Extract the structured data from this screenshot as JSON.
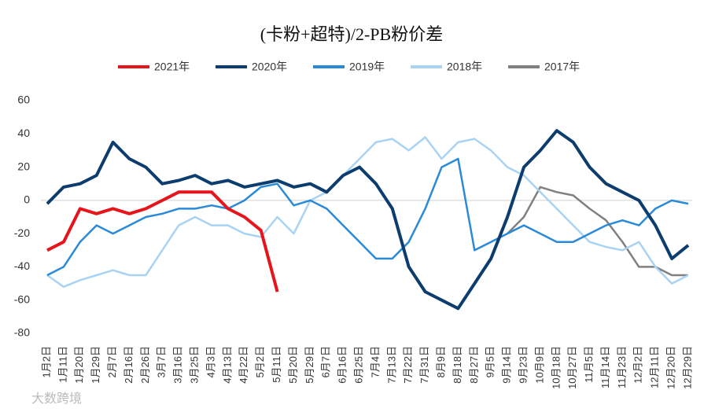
{
  "chart_data": {
    "type": "line",
    "title": "(卡粉+超特)/2-PB粉价差",
    "watermark": "大数跨境",
    "categories": [
      "1月2日",
      "1月11日",
      "1月20日",
      "1月29日",
      "2月7日",
      "2月16日",
      "2月26日",
      "3月7日",
      "3月16日",
      "3月25日",
      "4月3日",
      "4月13日",
      "4月22日",
      "5月2日",
      "5月11日",
      "5月20日",
      "5月29日",
      "6月7日",
      "6月16日",
      "6月25日",
      "7月4日",
      "7月13日",
      "7月22日",
      "7月31日",
      "8月9日",
      "8月18日",
      "8月27日",
      "9月5日",
      "9月14日",
      "9月23日",
      "10月9日",
      "10月18日",
      "10月27日",
      "11月5日",
      "11月14日",
      "11月23日",
      "12月2日",
      "12月11日",
      "12月20日",
      "12月29日"
    ],
    "series": [
      {
        "name": "2021年",
        "color": "#e8141b",
        "values": [
          -30,
          -25,
          -5,
          -8,
          -5,
          -8,
          -5,
          0,
          5,
          5,
          5,
          -5,
          -10,
          -18,
          -55,
          null,
          null,
          null,
          null,
          null,
          null,
          null,
          null,
          null,
          null,
          null,
          null,
          null,
          null,
          null,
          null,
          null,
          null,
          null,
          null,
          null,
          null,
          null,
          null,
          null
        ]
      },
      {
        "name": "2020年",
        "color": "#0d3d6e",
        "values": [
          -2,
          8,
          10,
          15,
          35,
          25,
          20,
          10,
          12,
          15,
          10,
          12,
          8,
          10,
          12,
          8,
          10,
          5,
          15,
          20,
          10,
          -5,
          -40,
          -55,
          -60,
          -65,
          -50,
          -35,
          -10,
          20,
          30,
          42,
          35,
          20,
          10,
          5,
          0,
          -15,
          -35,
          -27
        ]
      },
      {
        "name": "2019年",
        "color": "#2b8ad8",
        "values": [
          -45,
          -40,
          -25,
          -15,
          -20,
          -15,
          -10,
          -8,
          -5,
          -5,
          -3,
          -5,
          0,
          8,
          10,
          -3,
          0,
          -5,
          -15,
          -25,
          -35,
          -35,
          -25,
          -5,
          20,
          25,
          -30,
          -25,
          -20,
          -15,
          -20,
          -25,
          -25,
          -20,
          -15,
          -12,
          -15,
          -5,
          0,
          -2
        ]
      },
      {
        "name": "2018年",
        "color": "#a9d3f2",
        "values": [
          -45,
          -52,
          -48,
          -45,
          -42,
          -45,
          -45,
          -30,
          -15,
          -10,
          -15,
          -15,
          -20,
          -22,
          -10,
          -20,
          0,
          5,
          15,
          25,
          35,
          37,
          30,
          38,
          25,
          35,
          37,
          30,
          20,
          15,
          5,
          -5,
          -15,
          -25,
          -28,
          -30,
          -25,
          -40,
          -50,
          -45
        ]
      },
      {
        "name": "2017年",
        "color": "#808080",
        "values": [
          null,
          null,
          null,
          null,
          null,
          null,
          null,
          null,
          null,
          null,
          null,
          null,
          null,
          null,
          null,
          null,
          null,
          null,
          null,
          null,
          null,
          null,
          null,
          null,
          null,
          null,
          null,
          null,
          -20,
          -10,
          8,
          5,
          3,
          -5,
          -12,
          -25,
          -40,
          -40,
          -45,
          -45
        ]
      }
    ],
    "ylim": [
      -80,
      60
    ],
    "yticks": [
      -80,
      -60,
      -40,
      -20,
      0,
      20,
      40,
      60
    ]
  }
}
